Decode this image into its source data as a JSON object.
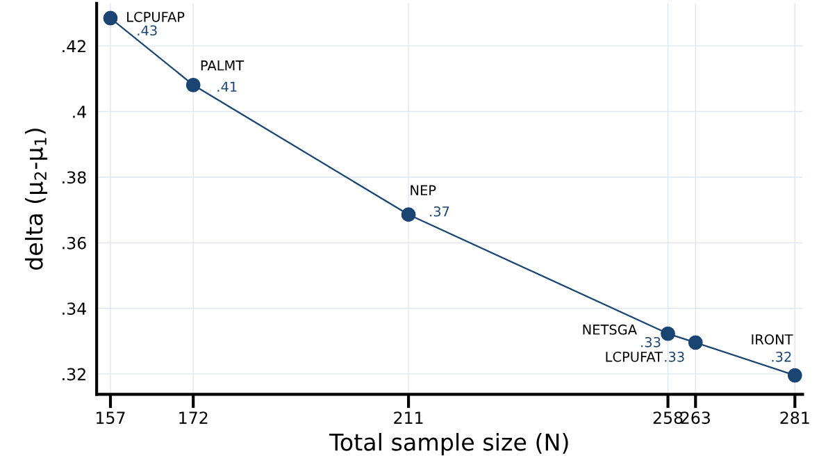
{
  "chart_data": {
    "type": "line",
    "xlabel": "Total sample size (N)",
    "ylabel": "delta (μ$_{2}$-μ$_{1}$)",
    "x": [
      157,
      172,
      211,
      258,
      263,
      281
    ],
    "series": [
      {
        "color": "#1a4472",
        "values": [
          0.4285,
          0.4081,
          0.3686,
          0.3323,
          0.3296,
          0.3196
        ],
        "value_labels": [
          ".43",
          ".41",
          ".37",
          ".33",
          ".33",
          ".32"
        ]
      }
    ],
    "marker": "circle",
    "line_style": "solid",
    "xlim": [
      154.5,
      282.4
    ],
    "ylim": [
      0.3138,
      0.433
    ],
    "xticks": [
      157,
      172,
      211,
      258,
      263,
      281
    ],
    "yticks": [
      {
        "value": 0.32,
        "label": ".32"
      },
      {
        "value": 0.34,
        "label": ".34"
      },
      {
        "value": 0.36,
        "label": ".36"
      },
      {
        "value": 0.38,
        "label": ".38"
      },
      {
        "value": 0.4,
        "label": ".4"
      },
      {
        "value": 0.42,
        "label": ".42"
      }
    ],
    "grid": true,
    "legend": false,
    "annotations": [
      {
        "text": "LCPUFAP",
        "x": 157,
        "y": 0.4285
      },
      {
        "text": "PALMT",
        "x": 172,
        "y": 0.4081
      },
      {
        "text": "NEP",
        "x": 211,
        "y": 0.3686
      },
      {
        "text": "NETSGA",
        "x": 258,
        "y": 0.3323
      },
      {
        "text": "LCPUFAT",
        "x": 263,
        "y": 0.3296
      },
      {
        "text": "IRONT",
        "x": 281,
        "y": 0.3196
      }
    ]
  }
}
